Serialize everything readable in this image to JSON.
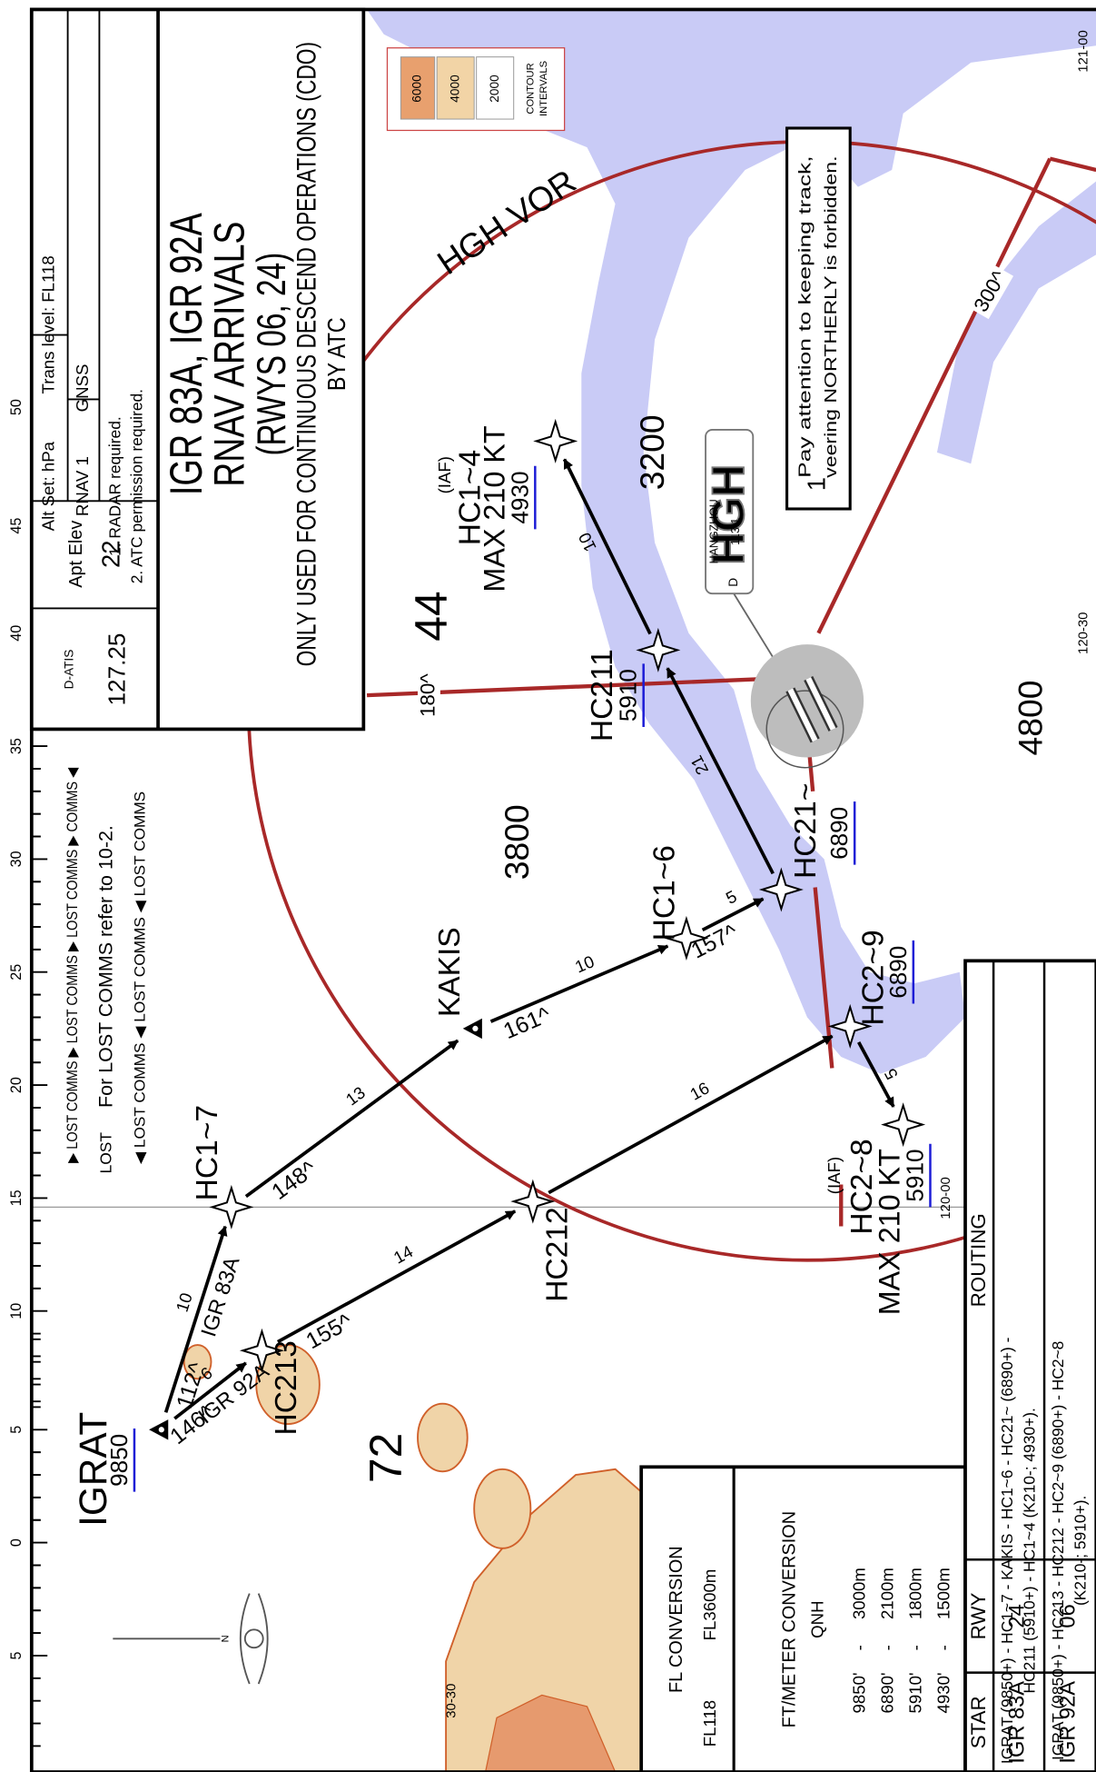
{
  "header": {
    "d_atis_label": "D-ATIS",
    "d_atis": "127.25",
    "apt_elev_label": "Apt Elev",
    "apt_elev": "22",
    "alt_set": "Alt Set: hPa",
    "trans_level": "Trans level: FL118",
    "nav_spec": "RNAV 1",
    "sensor": "GNSS",
    "notes": [
      "1. RADAR required.",
      "2. ATC permission required."
    ],
    "title": [
      "IGR 83A, IGR 92A",
      "RNAV ARRIVALS",
      "(RWYS 06, 24)",
      "ONLY USED FOR CONTINUOUS DESCEND OPERATIONS (CDO)",
      "BY ATC"
    ]
  },
  "lost_comms": {
    "top": "▶ LOST COMMS ▶ LOST COMMS ▶ LOST COMMS ▶ COMMS ◀",
    "lead": "LOST",
    "note": "For LOST COMMS refer to 10-2.",
    "bottom": "◀ LOST COMMS ◀ LOST COMMS ◀ LOST COMMS"
  },
  "contour_legend": {
    "values": [
      "6000",
      "4000",
      "2000"
    ],
    "label": [
      "CONTOUR",
      "INTERVALS"
    ]
  },
  "note": {
    "number": "1",
    "lines": [
      "Pay attention to keeping track,",
      "veering NORTHERLY is forbidden."
    ]
  },
  "vor": {
    "ring_label": "HGH VOR",
    "ident": "HGH",
    "name": "HANGZHOU",
    "freq": "113.1",
    "dme": "D",
    "radials": [
      "180^",
      "300^"
    ]
  },
  "waypoints": [
    {
      "name": "IGRAT",
      "altitude": "9850"
    },
    {
      "name": "HC1~7"
    },
    {
      "name": "KAKIS"
    },
    {
      "name": "HC1~6"
    },
    {
      "name": "HC21~",
      "altitude": "6890"
    },
    {
      "name": "HC211",
      "altitude": "5910"
    },
    {
      "name": "HC1~4",
      "altitude": "4930",
      "iaf": "(IAF)",
      "speed": "MAX 210 KT"
    },
    {
      "name": "HC213"
    },
    {
      "name": "HC212"
    },
    {
      "name": "HC2~9",
      "altitude": "6890"
    },
    {
      "name": "HC2~8",
      "altitude": "5910",
      "iaf": "(IAF)",
      "speed": "MAX 210 KT"
    }
  ],
  "legs": [
    {
      "course": "112^",
      "distance": "10",
      "name": "IGR 83A"
    },
    {
      "course": "146^",
      "distance": "6",
      "name": "IGR 92A"
    },
    {
      "course": "148^",
      "distance": "13"
    },
    {
      "course": "161^",
      "distance": "10"
    },
    {
      "course": "157^",
      "distance": "5"
    },
    {
      "distance": "21"
    },
    {
      "distance": "10"
    },
    {
      "course": "155^",
      "distance": "14"
    },
    {
      "distance": "16"
    },
    {
      "distance": "5"
    }
  ],
  "area_altitudes": [
    "3200",
    "3800",
    "4800"
  ],
  "grid_numbers": [
    "44",
    "72"
  ],
  "lat_labels": [
    "50",
    "45",
    "40",
    "35",
    "30",
    "25",
    "20",
    "15",
    "10",
    "5",
    "0",
    "5"
  ],
  "lon_labels": [
    "121-00",
    "120-30",
    "120-00",
    "30-30"
  ],
  "compass_north": "N",
  "fl_conversion": {
    "title": "FL CONVERSION",
    "fl": "FL118",
    "meters": "FL3600m",
    "ft_title": "FT/METER CONVERSION",
    "qnh": "QNH",
    "separator": "-",
    "rows": [
      [
        "9850'",
        "3000m"
      ],
      [
        "6890'",
        "2100m"
      ],
      [
        "5910'",
        "1800m"
      ],
      [
        "4930'",
        "1500m"
      ]
    ]
  },
  "routing": {
    "headers": [
      "STAR",
      "RWY",
      "ROUTING"
    ],
    "rows": [
      {
        "star": "IGR 83A",
        "rwy": "24",
        "route": [
          "IGRAT (9850+) - HC1~7 - KAKIS - HC1~6 - HC21~ (6890+) -",
          "HC211 (5910+) - HC1~4 (K210-; 4930+)."
        ]
      },
      {
        "star": "IGR 92A",
        "rwy": "06",
        "route": [
          "IGRAT (9850+) - HC213 - HC212 - HC2~9 (6890+) - HC2~8",
          "(K210-; 5910+)."
        ]
      }
    ]
  }
}
